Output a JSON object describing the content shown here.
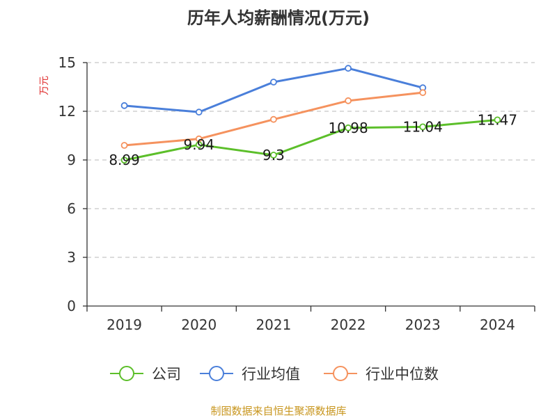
{
  "chart_data": {
    "type": "line",
    "title": "历年人均薪酬情况(万元)",
    "ylabel": "万元",
    "xlabel": "",
    "categories": [
      "2019",
      "2020",
      "2021",
      "2022",
      "2023",
      "2024"
    ],
    "ylim": [
      0,
      15
    ],
    "yticks": [
      0,
      3,
      6,
      9,
      12,
      15
    ],
    "grid": true,
    "legend_position": "bottom",
    "series": [
      {
        "name": "公司",
        "color": "#5cbf2a",
        "values": [
          8.99,
          9.94,
          9.3,
          10.98,
          11.04,
          11.47
        ],
        "labels": [
          "8.99",
          "9.94",
          "9.3",
          "10.98",
          "11.04",
          "11.47"
        ]
      },
      {
        "name": "行业均值",
        "color": "#4a7fda",
        "values": [
          12.35,
          11.95,
          13.8,
          14.65,
          13.45,
          null
        ]
      },
      {
        "name": "行业中位数",
        "color": "#f5925e",
        "values": [
          9.9,
          10.3,
          11.5,
          12.65,
          13.15,
          null
        ]
      }
    ]
  },
  "colors": {
    "ylabel": "#e03030",
    "source": "#c8961e"
  },
  "source_text": "制图数据来自恒生聚源数据库"
}
